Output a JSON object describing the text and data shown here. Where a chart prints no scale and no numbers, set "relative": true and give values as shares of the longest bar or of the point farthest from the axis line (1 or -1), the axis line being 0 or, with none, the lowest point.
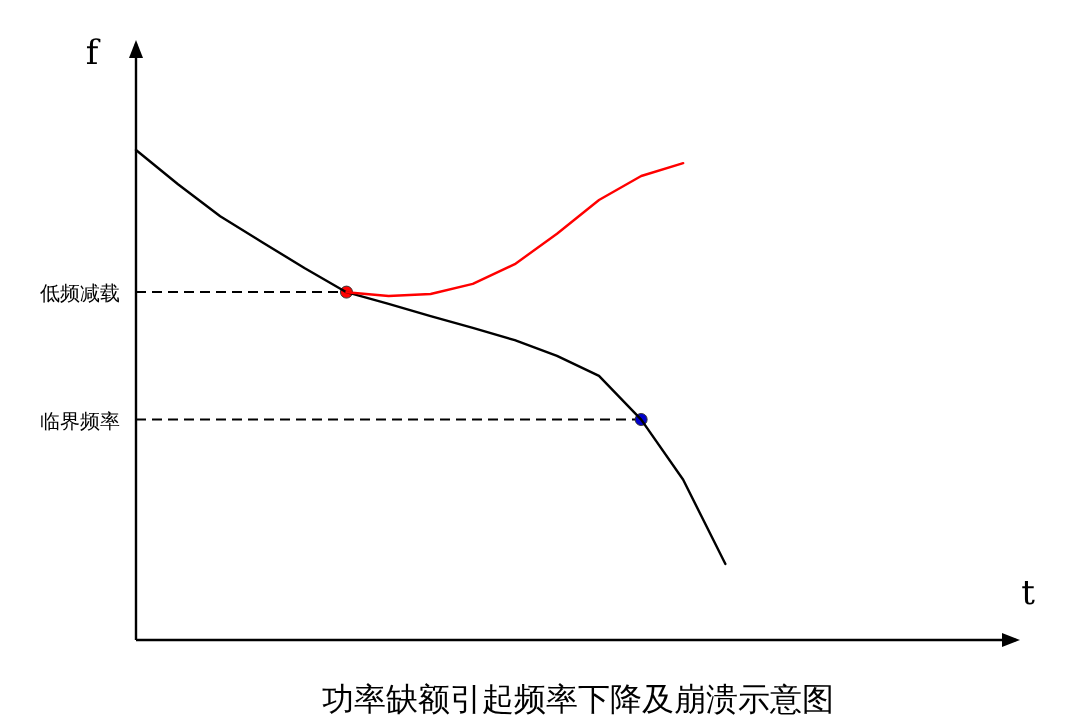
{
  "chart_data": {
    "type": "line",
    "title": "功率缺额引起频率下降及崩溃示意图",
    "xlabel": "t",
    "ylabel": "f",
    "relative": true,
    "marker": "none",
    "line_style": "solid",
    "categories": [
      null,
      null,
      null,
      null,
      null,
      null,
      null,
      null,
      null,
      null,
      null,
      null,
      null,
      null,
      null,
      null,
      null,
      null,
      null,
      null,
      null,
      null
    ],
    "series": [
      {
        "color": "#000000",
        "values": [
          1.0,
          0.93,
          0.865,
          0.812,
          0.759,
          0.71,
          0.686,
          0.661,
          0.637,
          0.612,
          0.58,
          0.539,
          0.45,
          0.327,
          0.155,
          null,
          null,
          null,
          null,
          null,
          null,
          null
        ]
      },
      {
        "color": "#ff0000",
        "values": [
          null,
          null,
          null,
          null,
          null,
          0.71,
          0.702,
          0.706,
          0.727,
          0.767,
          0.829,
          0.898,
          0.947,
          0.973,
          null,
          null,
          null,
          null,
          null,
          null,
          null,
          null
        ]
      }
    ],
    "ref_lines": [
      {
        "axis": "y",
        "value": 0.71,
        "label": "低频减载",
        "line_style": "dashed",
        "color": "#000000"
      },
      {
        "axis": "y",
        "value": 0.45,
        "label": "临界频率",
        "line_style": "dashed",
        "color": "#000000"
      }
    ]
  }
}
